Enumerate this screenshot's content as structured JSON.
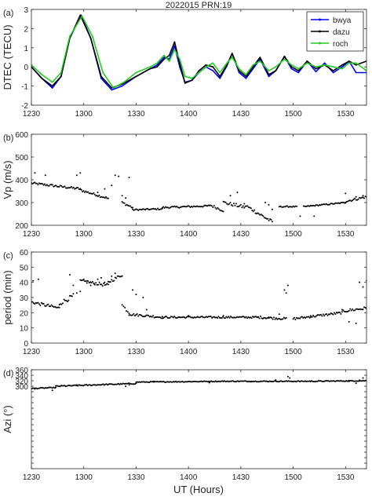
{
  "title": "2022015  PRN:19",
  "xlabel": "UT (Hours)",
  "x_ticks": [
    "1230",
    "1300",
    "1330",
    "1400",
    "1430",
    "1500",
    "1530"
  ],
  "chart_data": [
    {
      "panel_label": "(a)",
      "type": "line",
      "ylabel": "DTEC (TECU)",
      "xlim": [
        -30,
        162
      ],
      "ylim": [
        -2,
        3
      ],
      "yticks": [
        "-2",
        "-1",
        "0",
        "1",
        "2",
        "3"
      ],
      "legend": {
        "position": "top-right"
      },
      "series": [
        {
          "name": "bwya",
          "color": "#0000ff",
          "points": [
            [
              -30,
              0
            ],
            [
              -24,
              -0.6
            ],
            [
              -18,
              -1.1
            ],
            [
              -13,
              -0.5
            ],
            [
              -8,
              1.5
            ],
            [
              -1.5,
              2.7
            ],
            [
              4,
              1.5
            ],
            [
              10,
              -0.6
            ],
            [
              16,
              -1.2
            ],
            [
              22,
              -1
            ],
            [
              30,
              -0.5
            ],
            [
              38,
              -0.1
            ],
            [
              42,
              0.1
            ],
            [
              46,
              0.5
            ],
            [
              49,
              0.4
            ],
            [
              52,
              1.1
            ],
            [
              55,
              0
            ],
            [
              58,
              -0.8
            ],
            [
              62,
              -0.7
            ],
            [
              66,
              -0.3
            ],
            [
              70,
              0
            ],
            [
              74,
              -0.2
            ],
            [
              78,
              -0.6
            ],
            [
              82,
              0.05
            ],
            [
              85,
              0.7
            ],
            [
              89,
              -0.3
            ],
            [
              93,
              -0.6
            ],
            [
              97,
              -0.1
            ],
            [
              101,
              0.4
            ],
            [
              106,
              -0.5
            ],
            [
              110,
              -0.2
            ],
            [
              115,
              0.55
            ],
            [
              119,
              -0.1
            ],
            [
              123,
              -0.3
            ],
            [
              128,
              0.3
            ],
            [
              133,
              -0.25
            ],
            [
              138,
              0.2
            ],
            [
              143,
              -0.3
            ],
            [
              148,
              0
            ],
            [
              152,
              0.3
            ],
            [
              156,
              -0.3
            ],
            [
              162,
              -0.3
            ]
          ]
        },
        {
          "name": "dazu",
          "color": "#000000",
          "points": [
            [
              -30,
              0
            ],
            [
              -24,
              -0.6
            ],
            [
              -18,
              -1
            ],
            [
              -13,
              -0.5
            ],
            [
              -8,
              1.5
            ],
            [
              -2,
              2.7
            ],
            [
              4,
              1.5
            ],
            [
              10,
              -0.5
            ],
            [
              16,
              -1.1
            ],
            [
              22,
              -0.9
            ],
            [
              30,
              -0.5
            ],
            [
              38,
              -0.1
            ],
            [
              42,
              0
            ],
            [
              46,
              0.4
            ],
            [
              49,
              0.6
            ],
            [
              52,
              1.3
            ],
            [
              55,
              0.2
            ],
            [
              58,
              -0.85
            ],
            [
              62,
              -0.7
            ],
            [
              66,
              -0.2
            ],
            [
              70,
              0.1
            ],
            [
              74,
              0
            ],
            [
              78,
              -0.5
            ],
            [
              82,
              0.1
            ],
            [
              85,
              0.7
            ],
            [
              89,
              -0.2
            ],
            [
              93,
              -0.5
            ],
            [
              97,
              0
            ],
            [
              101,
              0.5
            ],
            [
              106,
              -0.4
            ],
            [
              110,
              -0.2
            ],
            [
              115,
              0.55
            ],
            [
              119,
              0
            ],
            [
              123,
              -0.2
            ],
            [
              128,
              0.3
            ],
            [
              133,
              -0.1
            ],
            [
              138,
              0.1
            ],
            [
              143,
              -0.2
            ],
            [
              148,
              0.1
            ],
            [
              152,
              0.3
            ],
            [
              156,
              0.1
            ],
            [
              162,
              0.3
            ]
          ]
        },
        {
          "name": "roch",
          "color": "#22cc22",
          "points": [
            [
              -30,
              0.1
            ],
            [
              -24,
              -0.4
            ],
            [
              -18,
              -0.8
            ],
            [
              -13,
              -0.3
            ],
            [
              -8,
              1.6
            ],
            [
              -1,
              2.65
            ],
            [
              5,
              1.6
            ],
            [
              11,
              -0.3
            ],
            [
              17,
              -1.1
            ],
            [
              23,
              -0.8
            ],
            [
              30,
              -0.3
            ],
            [
              38,
              0
            ],
            [
              42,
              0.2
            ],
            [
              46,
              0.6
            ],
            [
              49,
              0.3
            ],
            [
              52,
              0.9
            ],
            [
              55,
              0.4
            ],
            [
              58,
              -0.5
            ],
            [
              62,
              -0.6
            ],
            [
              66,
              -0.3
            ],
            [
              70,
              0
            ],
            [
              74,
              0.2
            ],
            [
              78,
              -0.3
            ],
            [
              82,
              0.2
            ],
            [
              85,
              0.5
            ],
            [
              89,
              -0.1
            ],
            [
              93,
              -0.4
            ],
            [
              97,
              0.1
            ],
            [
              101,
              0.3
            ],
            [
              106,
              -0.2
            ],
            [
              110,
              0
            ],
            [
              115,
              0.4
            ],
            [
              119,
              0.1
            ],
            [
              123,
              -0.1
            ],
            [
              128,
              0.2
            ],
            [
              133,
              0
            ],
            [
              138,
              0.1
            ],
            [
              143,
              0
            ],
            [
              148,
              -0.1
            ],
            [
              152,
              0.2
            ],
            [
              156,
              0.2
            ],
            [
              162,
              -0.2
            ]
          ]
        }
      ]
    },
    {
      "panel_label": "(b)",
      "type": "scatter",
      "ylabel": "Vp (m/s)",
      "xlim": [
        -30,
        162
      ],
      "ylim": [
        200,
        600
      ],
      "yticks": [
        "200",
        "300",
        "400",
        "500",
        "600"
      ],
      "segments": [
        {
          "x0": -30,
          "x1": -2,
          "y0": 385,
          "y1": 360,
          "jitter": 10
        },
        {
          "x0": -2,
          "x1": 14,
          "y0": 355,
          "y1": 318,
          "jitter": 10
        },
        {
          "x0": 22,
          "x1": 28,
          "y0": 300,
          "y1": 278,
          "jitter": 10
        },
        {
          "x0": 28,
          "x1": 45,
          "y0": 268,
          "y1": 272,
          "jitter": 6
        },
        {
          "x0": 45,
          "x1": 72,
          "y0": 278,
          "y1": 285,
          "jitter": 8
        },
        {
          "x0": 72,
          "x1": 80,
          "y0": 290,
          "y1": 265,
          "jitter": 12
        },
        {
          "x0": 80,
          "x1": 92,
          "y0": 300,
          "y1": 280,
          "jitter": 15
        },
        {
          "x0": 92,
          "x1": 108,
          "y0": 290,
          "y1": 215,
          "jitter": 15
        },
        {
          "x0": 112,
          "x1": 122,
          "y0": 282,
          "y1": 282,
          "jitter": 5
        },
        {
          "x0": 126,
          "x1": 150,
          "y0": 282,
          "y1": 300,
          "jitter": 5
        },
        {
          "x0": 150,
          "x1": 162,
          "y0": 305,
          "y1": 325,
          "jitter": 10
        }
      ],
      "scattered": [
        [
          -28,
          430
        ],
        [
          -22,
          420
        ],
        [
          -4,
          420
        ],
        [
          -2,
          430
        ],
        [
          8,
          345
        ],
        [
          12,
          360
        ],
        [
          16,
          375
        ],
        [
          18,
          420
        ],
        [
          20,
          415
        ],
        [
          22,
          330
        ],
        [
          24,
          320
        ],
        [
          26,
          410
        ],
        [
          84,
          330
        ],
        [
          88,
          345
        ],
        [
          104,
          300
        ],
        [
          106,
          290
        ],
        [
          108,
          270
        ],
        [
          124,
          240
        ],
        [
          132,
          240
        ],
        [
          150,
          340
        ],
        [
          156,
          325
        ],
        [
          160,
          330
        ]
      ]
    },
    {
      "panel_label": "(c)",
      "type": "scatter",
      "ylabel": "period (min)",
      "xlim": [
        -30,
        162
      ],
      "ylim": [
        0,
        60
      ],
      "yticks": [
        "0",
        "10",
        "20",
        "30",
        "40",
        "50",
        "60"
      ],
      "segments": [
        {
          "x0": -30,
          "x1": -14,
          "y0": 27,
          "y1": 23,
          "jitter": 2
        },
        {
          "x0": -14,
          "x1": -6,
          "y0": 26,
          "y1": 31,
          "jitter": 3
        },
        {
          "x0": -2,
          "x1": 14,
          "y0": 41,
          "y1": 38,
          "jitter": 2
        },
        {
          "x0": 14,
          "x1": 22,
          "y0": 40,
          "y1": 45,
          "jitter": 2
        },
        {
          "x0": 22,
          "x1": 26,
          "y0": 25,
          "y1": 20,
          "jitter": 2
        },
        {
          "x0": 26,
          "x1": 45,
          "y0": 19,
          "y1": 17,
          "jitter": 1.5
        },
        {
          "x0": 45,
          "x1": 100,
          "y0": 17,
          "y1": 17,
          "jitter": 1.2
        },
        {
          "x0": 100,
          "x1": 116,
          "y0": 17,
          "y1": 16,
          "jitter": 1.5
        },
        {
          "x0": 120,
          "x1": 148,
          "y0": 16,
          "y1": 20,
          "jitter": 1.5
        },
        {
          "x0": 148,
          "x1": 162,
          "y0": 21,
          "y1": 23,
          "jitter": 2
        }
      ],
      "scattered": [
        [
          -29,
          41
        ],
        [
          -26,
          42
        ],
        [
          -8,
          45
        ],
        [
          -6,
          38
        ],
        [
          -4,
          33
        ],
        [
          -2,
          34
        ],
        [
          0,
          42
        ],
        [
          2,
          41
        ],
        [
          4,
          38
        ],
        [
          6,
          39
        ],
        [
          8,
          42
        ],
        [
          10,
          43
        ],
        [
          12,
          40
        ],
        [
          16,
          44
        ],
        [
          18,
          46
        ],
        [
          28,
          35
        ],
        [
          30,
          32
        ],
        [
          34,
          30
        ],
        [
          36,
          22
        ],
        [
          60,
          18
        ],
        [
          80,
          18
        ],
        [
          106,
          17
        ],
        [
          112,
          19
        ],
        [
          115,
          35
        ],
        [
          116,
          33
        ],
        [
          117,
          38
        ],
        [
          130,
          18
        ],
        [
          152,
          14
        ],
        [
          156,
          13
        ],
        [
          158,
          40
        ],
        [
          160,
          37
        ],
        [
          162,
          41
        ]
      ]
    },
    {
      "panel_label": "(d)",
      "type": "scatter",
      "ylabel": "Azi (°)",
      "xlim": [
        -30,
        162
      ],
      "ylim": [
        0,
        360
      ],
      "yticks": [
        "",
        "",
        "",
        "",
        "",
        "",
        "",
        "",
        "",
        "",
        "",
        "",
        "",
        "",
        "",
        "300",
        "320",
        "340",
        "360"
      ],
      "segments": [
        {
          "x0": -30,
          "x1": -16,
          "y0": 292,
          "y1": 295,
          "jitter": 3
        },
        {
          "x0": -16,
          "x1": 30,
          "y0": 300,
          "y1": 310,
          "jitter": 4
        },
        {
          "x0": 30,
          "x1": 80,
          "y0": 315,
          "y1": 318,
          "jitter": 3
        },
        {
          "x0": 80,
          "x1": 130,
          "y0": 318,
          "y1": 318,
          "jitter": 3
        },
        {
          "x0": 130,
          "x1": 162,
          "y0": 318,
          "y1": 320,
          "jitter": 3
        }
      ],
      "scattered": [
        [
          -28,
          290
        ],
        [
          -18,
          285
        ],
        [
          -4,
          305
        ],
        [
          24,
          300
        ],
        [
          26,
          305
        ],
        [
          40,
          318
        ],
        [
          72,
          313
        ],
        [
          96,
          318
        ],
        [
          110,
          323
        ],
        [
          117,
          335
        ],
        [
          118,
          330
        ],
        [
          152,
          318
        ],
        [
          156,
          311
        ],
        [
          158,
          322
        ],
        [
          160,
          330
        ]
      ]
    }
  ]
}
